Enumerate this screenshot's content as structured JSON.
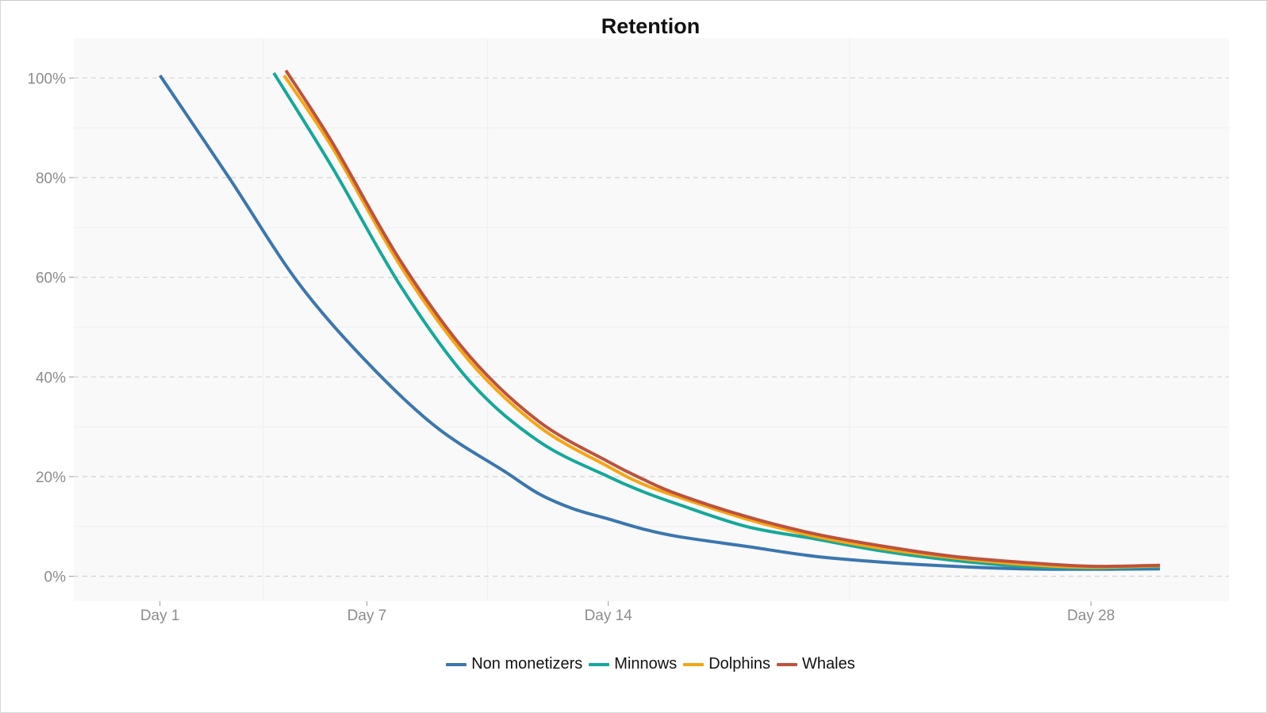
{
  "chart_data": {
    "type": "line",
    "title": "Retention",
    "xlabel": "",
    "ylabel": "",
    "x_range": [
      -1.5,
      32.0
    ],
    "ylim": [
      -5,
      108
    ],
    "y_ticks": [
      0,
      20,
      40,
      60,
      80,
      100
    ],
    "y_tick_labels": [
      "0%",
      "20%",
      "40%",
      "60%",
      "80%",
      "100%"
    ],
    "x_ticks": [
      1,
      7,
      14,
      28
    ],
    "x_tick_labels": [
      "Day 1",
      "Day 7",
      "Day 14",
      "Day 28"
    ],
    "grid": true,
    "legend_position": "bottom",
    "series": [
      {
        "name": "Non monetizers",
        "color": "#3b76af",
        "x": [
          1,
          3,
          5,
          7,
          9,
          11,
          12,
          13,
          14,
          15,
          16,
          18,
          20,
          22,
          24,
          26,
          28,
          30
        ],
        "values": [
          100.5,
          80,
          59,
          43,
          30,
          21,
          16.5,
          13.5,
          11.5,
          9.5,
          8,
          6,
          4,
          2.8,
          2,
          1.5,
          1.4,
          1.5
        ]
      },
      {
        "name": "Minnows",
        "color": "#15a89b",
        "x": [
          4.3,
          6,
          8,
          10,
          12,
          14,
          15,
          16,
          18,
          20,
          22,
          24,
          26,
          28,
          30
        ],
        "values": [
          101,
          82,
          58,
          39,
          27,
          20,
          17,
          14.5,
          10,
          7.5,
          5,
          3.2,
          2,
          1.6,
          1.9
        ]
      },
      {
        "name": "Dolphins",
        "color": "#f5a614",
        "x": [
          4.6,
          6,
          8,
          10,
          12,
          14,
          15,
          16,
          18,
          20,
          22,
          24,
          26,
          28,
          30
        ],
        "values": [
          100.5,
          86,
          62,
          43,
          30,
          22,
          18.5,
          16,
          11.5,
          8,
          5.5,
          3.7,
          2.4,
          1.8,
          2.1
        ]
      },
      {
        "name": "Whales",
        "color": "#bd523d",
        "x": [
          4.65,
          6,
          8,
          10,
          12,
          14,
          15,
          16,
          18,
          20,
          22,
          24,
          26,
          28,
          30
        ],
        "values": [
          101.5,
          87,
          63,
          44,
          31,
          23,
          19.5,
          16.5,
          12,
          8.5,
          6,
          4,
          2.8,
          2,
          2.2
        ]
      }
    ]
  }
}
